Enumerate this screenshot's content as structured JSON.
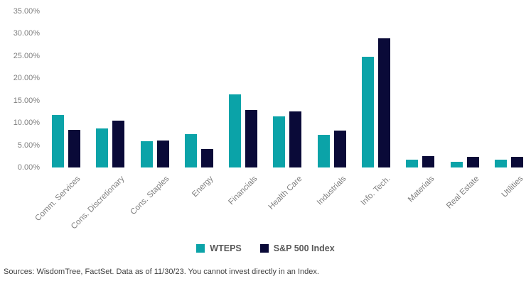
{
  "chart_data": {
    "type": "bar",
    "title": "",
    "categories": [
      "Comm. Services",
      "Cons. Discretionary",
      "Cons. Staples",
      "Energy",
      "Financials",
      "Health Care",
      "Industrials",
      "Info. Tech.",
      "Materials",
      "Real Estate",
      "Utilities"
    ],
    "series": [
      {
        "name": "WTEPS",
        "color": "#0ba3a8",
        "values": [
          11.8,
          8.8,
          5.9,
          7.5,
          16.4,
          11.5,
          7.3,
          24.8,
          1.7,
          1.2,
          1.8
        ]
      },
      {
        "name": "S&P 500 Index",
        "color": "#0a0a38",
        "values": [
          8.4,
          10.5,
          6.0,
          4.1,
          12.9,
          12.5,
          8.2,
          29.0,
          2.5,
          2.4,
          2.4
        ]
      }
    ],
    "ylim": [
      0,
      35
    ],
    "ytick_values": [
      0,
      5,
      10,
      15,
      20,
      25,
      30,
      35
    ],
    "ytick_labels": [
      "0.00%",
      "5.00%",
      "10.00%",
      "15.00%",
      "20.00%",
      "25.00%",
      "30.00%",
      "35.00%"
    ],
    "grid": false,
    "legend_position": "bottom-center",
    "xlabel": "",
    "ylabel": ""
  },
  "colors": {
    "axis_text": "#7f7f7f",
    "legend_text": "#595959",
    "source_text": "#404040",
    "background": "#ffffff"
  },
  "source_note": "Sources: WisdomTree, FactSet. Data as of 11/30/23. You cannot invest directly in an Index."
}
